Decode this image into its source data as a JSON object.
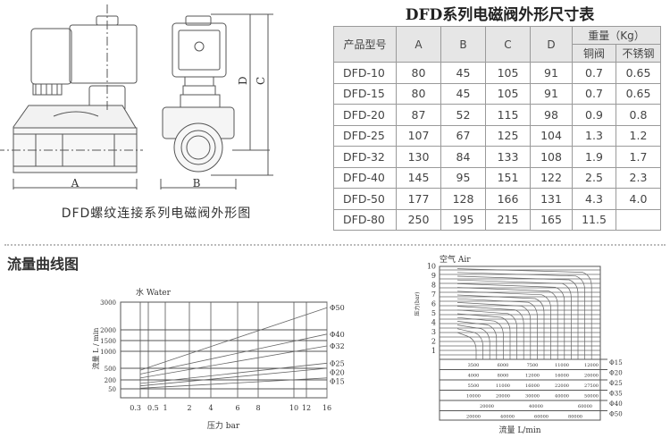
{
  "drawing": {
    "caption": "DFD螺纹连接系列电磁阀外形图",
    "dim_labels": {
      "a": "A",
      "b": "B",
      "c": "C",
      "d": "D"
    }
  },
  "table": {
    "title": "DFD系列电磁阀外形尺寸表",
    "headers": {
      "model": "产品型号",
      "a": "A",
      "b": "B",
      "c": "C",
      "d": "D",
      "weight": "重量（Kg）",
      "copper": "铜阀",
      "stainless": "不锈钢"
    },
    "rows": [
      [
        "DFD-10",
        "80",
        "45",
        "105",
        "91",
        "0.7",
        "0.65"
      ],
      [
        "DFD-15",
        "80",
        "45",
        "105",
        "91",
        "0.7",
        "0.65"
      ],
      [
        "DFD-20",
        "87",
        "52",
        "115",
        "98",
        "0.9",
        "0.8"
      ],
      [
        "DFD-25",
        "107",
        "67",
        "125",
        "104",
        "1.3",
        "1.2"
      ],
      [
        "DFD-32",
        "130",
        "84",
        "133",
        "108",
        "1.9",
        "1.7"
      ],
      [
        "DFD-40",
        "145",
        "95",
        "151",
        "122",
        "2.5",
        "2.3"
      ],
      [
        "DFD-50",
        "177",
        "128",
        "166",
        "131",
        "4.3",
        "4.0"
      ],
      [
        "DFD-80",
        "250",
        "195",
        "215",
        "165",
        "11.5",
        ""
      ]
    ]
  },
  "section_title": "流量曲线图",
  "chart_data": [
    {
      "type": "line",
      "title": "水 Water",
      "xlabel": "压力 bar",
      "ylabel": "流量 L / min",
      "x_ticks": [
        0.3,
        0.5,
        1,
        2,
        4,
        6,
        8,
        10,
        12,
        16
      ],
      "y_ticks": [
        50,
        200,
        500,
        1000,
        1500,
        2000,
        3000
      ],
      "grid": true,
      "series": [
        {
          "name": "Φ50",
          "x": [
            0.3,
            16
          ],
          "y": [
            450,
            2800
          ]
        },
        {
          "name": "Φ40",
          "x": [
            0.3,
            16
          ],
          "y": [
            350,
            1800
          ]
        },
        {
          "name": "Φ32",
          "x": [
            0.3,
            16
          ],
          "y": [
            250,
            1250
          ]
        },
        {
          "name": "Φ25",
          "x": [
            0.3,
            16
          ],
          "y": [
            140,
            650
          ]
        },
        {
          "name": "Φ20",
          "x": [
            0.3,
            16
          ],
          "y": [
            100,
            500
          ]
        },
        {
          "name": "Φ15",
          "x": [
            0.3,
            16
          ],
          "y": [
            60,
            250
          ]
        }
      ]
    },
    {
      "type": "table",
      "title": "空气 Air",
      "xlabel": "流量 L/min",
      "ylabel": "压力(bar)",
      "y_ticks": [
        1,
        2,
        3,
        4,
        5,
        6,
        7,
        8,
        9,
        10
      ],
      "rows": [
        {
          "name": "Φ15",
          "values": [
            "3500",
            "6000",
            "7500",
            "11000",
            "12000"
          ]
        },
        {
          "name": "Φ20",
          "values": [
            "4000",
            "8000",
            "12000",
            "16000",
            "20000"
          ]
        },
        {
          "name": "Φ25",
          "values": [
            "5500",
            "11000",
            "16000",
            "22000",
            "27500"
          ]
        },
        {
          "name": "Φ35",
          "values": [
            "10000",
            "20000",
            "30000",
            "40000",
            "50000"
          ]
        },
        {
          "name": "Φ40",
          "values": [
            "20000",
            "40000",
            "60000"
          ]
        },
        {
          "name": "Φ50",
          "values": [
            "20000",
            "40000",
            "60000",
            "80000"
          ]
        }
      ]
    }
  ]
}
